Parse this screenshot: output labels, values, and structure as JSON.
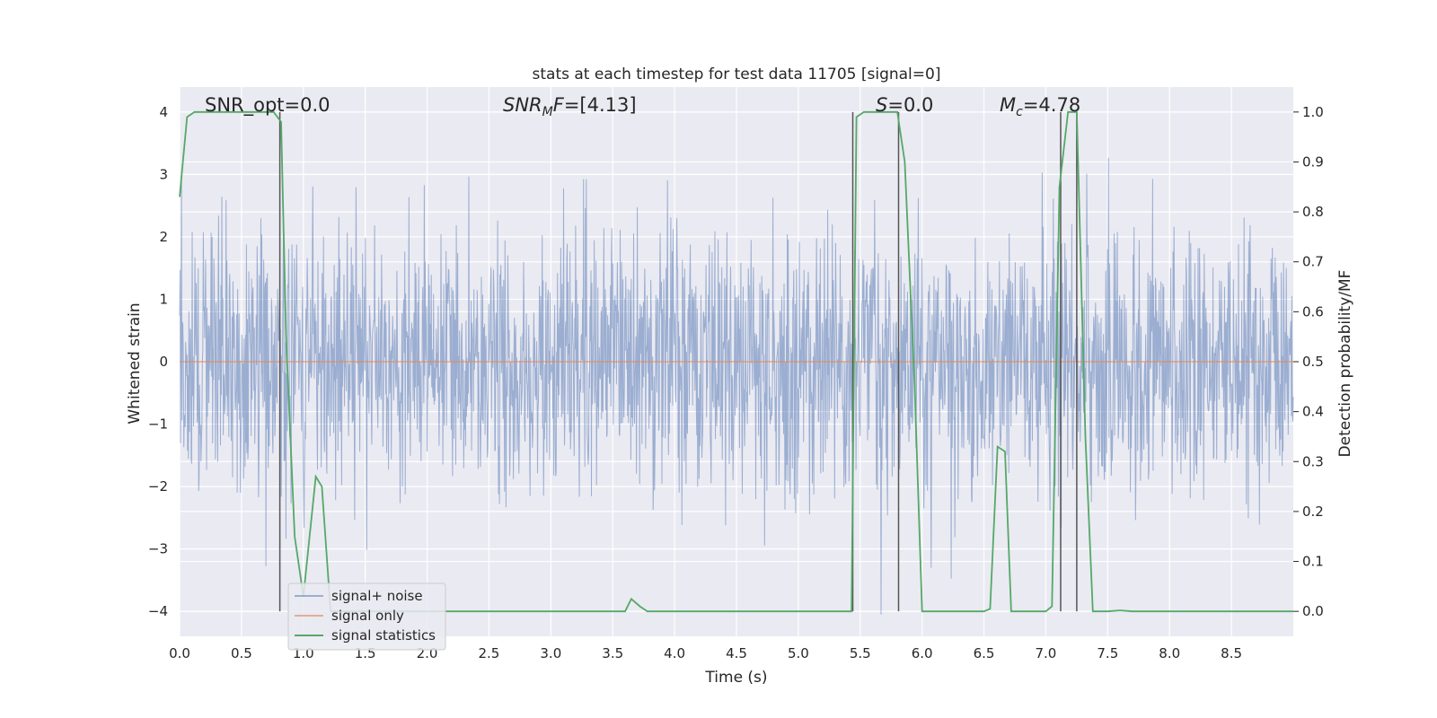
{
  "chart_data": {
    "type": "line",
    "title": "stats at each timestep for test data 11705 [signal=0]",
    "xlabel": "Time (s)",
    "ylabel_left": "Whitened strain",
    "ylabel_right": "Detection probability/MF",
    "xlim": [
      0.0,
      9.0
    ],
    "ylim_left": [
      -4.4,
      4.4
    ],
    "ylim_right": [
      -0.05,
      1.05
    ],
    "x_ticks": [
      0.0,
      0.5,
      1.0,
      1.5,
      2.0,
      2.5,
      3.0,
      3.5,
      4.0,
      4.5,
      5.0,
      5.5,
      6.0,
      6.5,
      7.0,
      7.5,
      8.0,
      8.5
    ],
    "x_tick_labels": [
      "0.0",
      "0.5",
      "1.0",
      "1.5",
      "2.0",
      "2.5",
      "3.0",
      "3.5",
      "4.0",
      "4.5",
      "5.0",
      "5.5",
      "6.0",
      "6.5",
      "7.0",
      "7.5",
      "8.0",
      "8.5"
    ],
    "y_left_ticks": [
      4,
      3,
      2,
      1,
      0,
      -1,
      -2,
      -3,
      -4
    ],
    "y_left_tick_labels": [
      "4",
      "3",
      "2",
      "1",
      "0",
      "−1",
      "−2",
      "−3",
      "−4"
    ],
    "y_right_ticks": [
      1.0,
      0.9,
      0.8,
      0.7,
      0.6,
      0.5,
      0.4,
      0.3,
      0.2,
      0.1,
      0.0
    ],
    "y_right_tick_labels": [
      "1.0",
      "0.9",
      "0.8",
      "0.7",
      "0.6",
      "0.5",
      "0.4",
      "0.3",
      "0.2",
      "0.1",
      "0.0"
    ],
    "grid": true,
    "legend_position": "lower-left",
    "annotations": [
      {
        "text": "SNR_opt=0.0"
      },
      {
        "text": "SNR_MF=[4.13]"
      },
      {
        "text": "S=0.0"
      },
      {
        "text": "M_c=4.78"
      }
    ],
    "detection_markers_x": [
      0.81,
      5.44,
      5.81,
      7.12,
      7.25
    ],
    "series": [
      {
        "name": "signal+ noise",
        "axis": "left",
        "color": "#4c72b0",
        "description_envelope": "whitened noise, typical range about -2.5 to 2.5, peaks to about ±4",
        "rms": 1.0
      },
      {
        "name": "signal only",
        "axis": "left",
        "color": "#dd8452",
        "x": [
          0.0,
          9.0
        ],
        "y": [
          0.0,
          0.0
        ]
      },
      {
        "name": "signal statistics",
        "axis": "right",
        "color": "#55a868",
        "x": [
          0.0,
          0.06,
          0.12,
          0.3,
          0.5,
          0.7,
          0.76,
          0.82,
          0.86,
          0.93,
          1.0,
          1.05,
          1.1,
          1.15,
          1.22,
          1.3,
          1.4,
          2.0,
          3.0,
          3.6,
          3.65,
          3.72,
          3.78,
          4.0,
          5.0,
          5.43,
          5.47,
          5.53,
          5.65,
          5.8,
          5.86,
          5.94,
          6.0,
          6.5,
          6.55,
          6.61,
          6.67,
          6.72,
          6.85,
          7.0,
          7.05,
          7.11,
          7.18,
          7.25,
          7.32,
          7.38,
          7.5,
          7.6,
          7.7,
          8.0,
          9.0
        ],
        "y": [
          0.83,
          0.99,
          1.0,
          1.0,
          1.0,
          1.0,
          1.0,
          0.98,
          0.55,
          0.15,
          0.03,
          0.15,
          0.27,
          0.25,
          0.0,
          0.0,
          0.0,
          0.0,
          0.0,
          0.0,
          0.025,
          0.01,
          0.0,
          0.0,
          0.0,
          0.0,
          0.99,
          1.0,
          1.0,
          1.0,
          0.9,
          0.45,
          0.0,
          0.0,
          0.005,
          0.33,
          0.32,
          0.0,
          0.0,
          0.0,
          0.01,
          0.85,
          1.0,
          1.0,
          0.35,
          0.0,
          0.0,
          0.002,
          0.0,
          0.0,
          0.0
        ]
      }
    ]
  }
}
